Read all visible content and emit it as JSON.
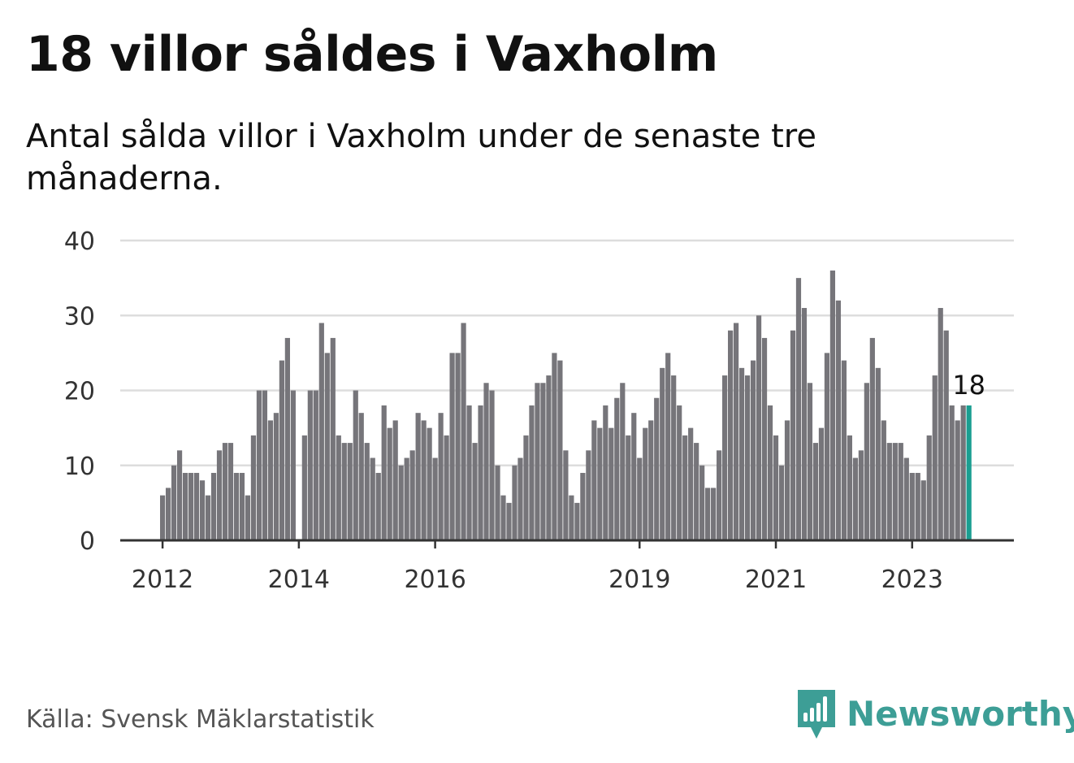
{
  "title": "18 villor såldes i Vaxholm",
  "subtitle": "Antal sålda villor i Vaxholm under de senaste tre månaderna.",
  "source": "Källa: Svensk Mäklarstatistik",
  "brand": {
    "name": "Newsworthy",
    "icon": "newsworthy-logo-icon",
    "color": "#3d9e96"
  },
  "chart_data": {
    "type": "bar",
    "title": "18 villor såldes i Vaxholm",
    "xlabel": "",
    "ylabel": "",
    "ylim": [
      0,
      40
    ],
    "y_ticks": [
      "0",
      "10",
      "20",
      "30",
      "40"
    ],
    "grid": true,
    "x_ticks": [
      {
        "label": "2012",
        "index": 0
      },
      {
        "label": "2014",
        "index": 24
      },
      {
        "label": "2016",
        "index": 48
      },
      {
        "label": "2019",
        "index": 84
      },
      {
        "label": "2021",
        "index": 108
      },
      {
        "label": "2023",
        "index": 132
      }
    ],
    "highlight": {
      "index": 142,
      "label": "18",
      "value": 18
    },
    "colors": {
      "bar": "#76757a",
      "highlight": "#1a9e91",
      "grid": "#dddddd",
      "axis": "#333333"
    },
    "values": [
      6,
      7,
      10,
      12,
      9,
      9,
      9,
      8,
      6,
      9,
      12,
      13,
      13,
      9,
      9,
      6,
      14,
      20,
      20,
      16,
      17,
      24,
      27,
      20,
      0,
      14,
      20,
      20,
      29,
      25,
      27,
      14,
      13,
      13,
      20,
      17,
      13,
      11,
      9,
      18,
      15,
      16,
      10,
      11,
      12,
      17,
      16,
      15,
      11,
      17,
      14,
      25,
      25,
      29,
      18,
      13,
      18,
      21,
      20,
      10,
      6,
      5,
      10,
      11,
      14,
      18,
      21,
      21,
      22,
      25,
      24,
      12,
      6,
      5,
      9,
      12,
      16,
      15,
      18,
      15,
      19,
      21,
      14,
      17,
      11,
      15,
      16,
      19,
      23,
      25,
      22,
      18,
      14,
      15,
      13,
      10,
      7,
      7,
      12,
      22,
      28,
      29,
      23,
      22,
      24,
      30,
      27,
      18,
      14,
      10,
      16,
      28,
      35,
      31,
      21,
      13,
      15,
      25,
      36,
      32,
      24,
      14,
      11,
      12,
      21,
      27,
      23,
      16,
      13,
      13,
      13,
      11,
      9,
      9,
      8,
      14,
      22,
      31,
      28,
      18,
      16,
      18,
      18
    ]
  }
}
